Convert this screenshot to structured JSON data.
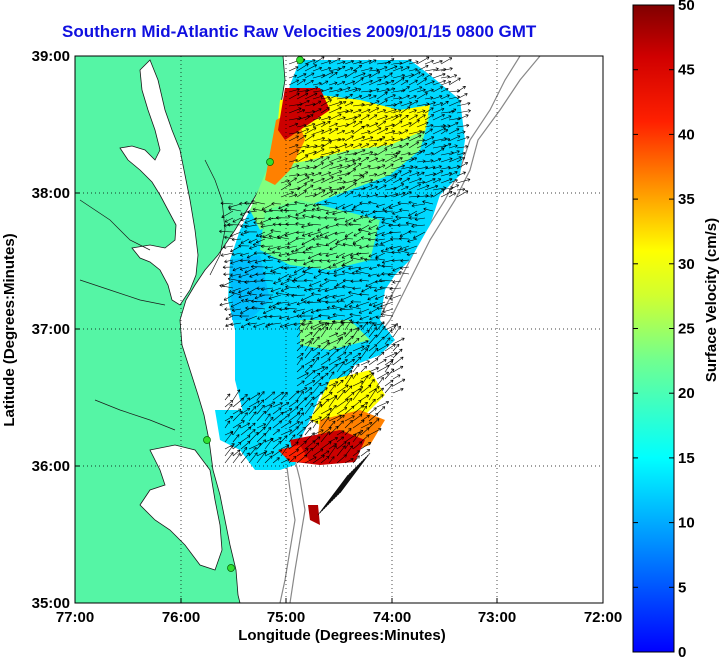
{
  "title": "Southern Mid-Atlantic Raw Velocities 2009/01/15 0800 GMT",
  "map": {
    "xlabel": "Longitude (Degrees:Minutes)",
    "ylabel": "Latitude (Degrees:Minutes)",
    "lon_ticks": [
      "77:00",
      "76:00",
      "75:00",
      "74:00",
      "73:00",
      "72:00"
    ],
    "lat_ticks": [
      "39:00",
      "38:00",
      "37:00",
      "36:00",
      "35:00"
    ],
    "lon_range": [
      -77,
      -72
    ],
    "lat_range": [
      35,
      39
    ],
    "grid": "dotted",
    "land_color": "#55f5a5",
    "water_color": "#ffffff",
    "station_markers": 4
  },
  "colorbar": {
    "label": "Surface Velocity (cm/s)",
    "ticks": [
      "50",
      "45",
      "40",
      "35",
      "30",
      "25",
      "20",
      "15",
      "10",
      "5",
      "0"
    ],
    "range": [
      0,
      50
    ],
    "colors": [
      "#0000ff",
      "#00a0ff",
      "#00ffff",
      "#80ff80",
      "#ffff00",
      "#ff8000",
      "#ff0000",
      "#800000"
    ]
  }
}
